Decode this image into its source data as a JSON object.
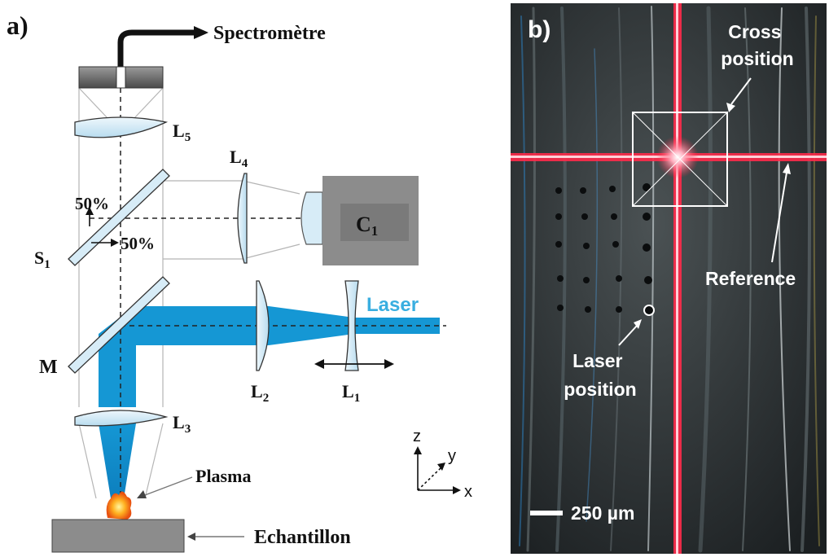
{
  "panel_a": {
    "tag": "a)",
    "spectrometer": "Spectromètre",
    "lens5": {
      "base": "L",
      "sub": "5"
    },
    "lens4": {
      "base": "L",
      "sub": "4"
    },
    "lens3": {
      "base": "L",
      "sub": "3"
    },
    "lens2": {
      "base": "L",
      "sub": "2"
    },
    "lens1": {
      "base": "L",
      "sub": "1"
    },
    "camera": {
      "base": "C",
      "sub": "1"
    },
    "splitter": {
      "base": "S",
      "sub": "1"
    },
    "split_up": "50%",
    "split_right": "50%",
    "mirror": "M",
    "laser": "Laser",
    "plasma": "Plasma",
    "sample": "Echantillon",
    "axes": {
      "z": "z",
      "y": "y",
      "x": "x"
    },
    "colors": {
      "beam": "#1597d4",
      "lens": "#d7ecf7",
      "housing": "#8c8c8c"
    }
  },
  "panel_b": {
    "tag": "b)",
    "cross_position": [
      "Cross",
      "position"
    ],
    "reference": "Reference",
    "laser_position": [
      "Laser",
      "position"
    ],
    "scale_bar": "250 µm",
    "colors": {
      "cross": "#ff2a4a",
      "background": "#2e3436"
    }
  }
}
